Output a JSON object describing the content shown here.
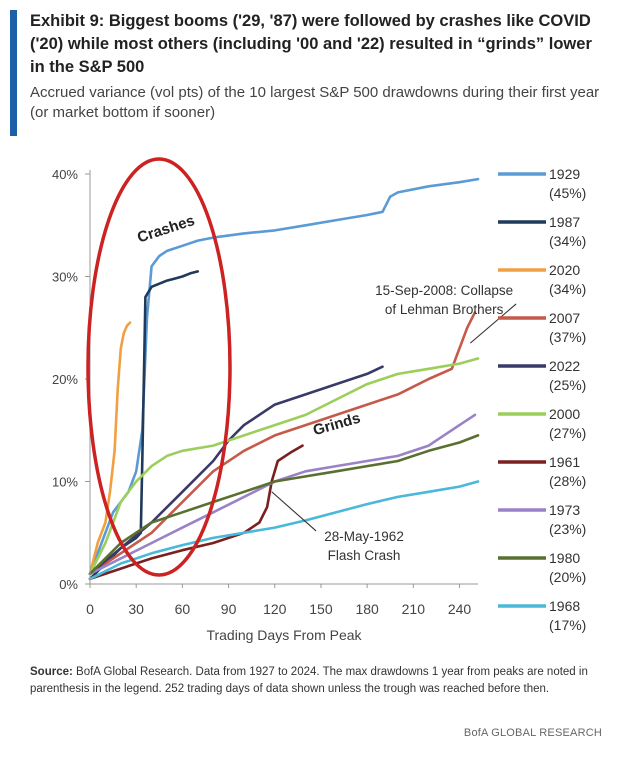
{
  "header": {
    "title": "Exhibit 9: Biggest booms ('29, '87) were followed by crashes like COVID ('20) while most others (including '00 and '22) resulted in “grinds” lower in the S&P 500",
    "subtitle": "Accrued variance (vol pts) of the 10 largest S&P 500 drawdowns during their first year (or market bottom if sooner)"
  },
  "colors": {
    "accent": "#1a5fa8",
    "crash_circle": "#cc2222"
  },
  "chart_data": {
    "type": "line",
    "title": "",
    "xlabel": "Trading Days From Peak",
    "ylabel": "",
    "xlim": [
      0,
      252
    ],
    "ylim": [
      0,
      40
    ],
    "xticks": [
      0,
      30,
      60,
      90,
      120,
      150,
      180,
      210,
      240
    ],
    "yticks": [
      {
        "value": 0,
        "label": "0%"
      },
      {
        "value": 10,
        "label": "10%"
      },
      {
        "value": 20,
        "label": "20%"
      },
      {
        "value": 30,
        "label": "30%"
      },
      {
        "value": 40,
        "label": "40%"
      }
    ],
    "grid": false,
    "legend_position": "right",
    "series": [
      {
        "name": "1929",
        "note": "(45%)",
        "color": "#5b9bd5",
        "x": [
          0,
          5,
          10,
          15,
          20,
          25,
          30,
          34,
          37,
          40,
          45,
          50,
          60,
          70,
          80,
          100,
          120,
          140,
          160,
          180,
          190,
          195,
          200,
          220,
          240,
          252
        ],
        "y": [
          1,
          3,
          5,
          7,
          8,
          9,
          11,
          15,
          26,
          31,
          32,
          32.5,
          33,
          33.5,
          33.8,
          34.2,
          34.5,
          35,
          35.5,
          36,
          36.3,
          37.8,
          38.2,
          38.8,
          39.2,
          39.5
        ]
      },
      {
        "name": "1987",
        "note": "(34%)",
        "color": "#1f3a5a",
        "x": [
          0,
          10,
          20,
          30,
          33,
          34,
          36,
          40,
          45,
          50,
          55,
          60,
          65,
          70
        ],
        "y": [
          0.5,
          2,
          3.5,
          4.5,
          5,
          12,
          28,
          29,
          29.3,
          29.6,
          29.8,
          30,
          30.3,
          30.5
        ]
      },
      {
        "name": "2020",
        "note": "(34%)",
        "color": "#f0a040",
        "x": [
          0,
          5,
          10,
          13,
          16,
          18,
          20,
          22,
          24,
          26
        ],
        "y": [
          1,
          4,
          6,
          9,
          13,
          19,
          23,
          24.5,
          25.2,
          25.5
        ]
      },
      {
        "name": "2007",
        "note": "(37%)",
        "color": "#c55a4a",
        "x": [
          0,
          20,
          40,
          60,
          80,
          100,
          120,
          140,
          160,
          180,
          200,
          220,
          235,
          240,
          245,
          250
        ],
        "y": [
          1,
          3,
          5,
          8,
          11,
          13,
          14.5,
          15.5,
          16.5,
          17.5,
          18.5,
          20,
          21,
          23,
          25,
          26.5
        ]
      },
      {
        "name": "2022",
        "note": "(25%)",
        "color": "#3a3a6a",
        "x": [
          0,
          20,
          40,
          60,
          80,
          90,
          100,
          120,
          140,
          160,
          180,
          190
        ],
        "y": [
          1,
          3.5,
          6,
          9,
          12,
          14,
          15.5,
          17.5,
          18.5,
          19.5,
          20.5,
          21.2
        ]
      },
      {
        "name": "2000",
        "note": "(27%)",
        "color": "#9bcf5a",
        "x": [
          0,
          10,
          20,
          30,
          40,
          50,
          60,
          80,
          100,
          120,
          140,
          160,
          180,
          200,
          220,
          240,
          252
        ],
        "y": [
          1,
          4,
          8,
          10,
          11.5,
          12.5,
          13,
          13.5,
          14.5,
          15.5,
          16.5,
          18,
          19.5,
          20.5,
          21,
          21.5,
          22
        ]
      },
      {
        "name": "1961",
        "note": "(28%)",
        "color": "#7a2020",
        "x": [
          0,
          20,
          40,
          60,
          80,
          100,
          110,
          115,
          118,
          122,
          130,
          138
        ],
        "y": [
          0.5,
          1.5,
          2.5,
          3.3,
          4,
          5,
          6,
          7.5,
          10,
          12,
          12.8,
          13.5
        ]
      },
      {
        "name": "1973",
        "note": "(23%)",
        "color": "#9a82c8",
        "x": [
          0,
          20,
          40,
          60,
          80,
          100,
          120,
          140,
          160,
          180,
          200,
          220,
          240,
          250
        ],
        "y": [
          1,
          2.5,
          4,
          5.5,
          7,
          8.5,
          10,
          11,
          11.5,
          12,
          12.5,
          13.5,
          15.5,
          16.5
        ]
      },
      {
        "name": "1980",
        "note": "(20%)",
        "color": "#5a7030",
        "x": [
          0,
          20,
          40,
          60,
          80,
          100,
          120,
          140,
          160,
          180,
          200,
          220,
          240,
          252
        ],
        "y": [
          1,
          4,
          6,
          7,
          8,
          9,
          10,
          10.5,
          11,
          11.5,
          12,
          13,
          13.8,
          14.5
        ]
      },
      {
        "name": "1968",
        "note": "(17%)",
        "color": "#4ab8d8",
        "x": [
          0,
          20,
          40,
          60,
          80,
          100,
          120,
          140,
          160,
          180,
          200,
          220,
          240,
          252
        ],
        "y": [
          0.5,
          2,
          3,
          3.8,
          4.5,
          5,
          5.5,
          6.2,
          7,
          7.8,
          8.5,
          9,
          9.5,
          10
        ]
      }
    ],
    "annotations": [
      {
        "id": "crashes",
        "text": "Crashes",
        "x": 32,
        "y": 33.3
      },
      {
        "id": "grinds",
        "text": "Grinds",
        "x": 146,
        "y": 14.5
      },
      {
        "id": "lehman",
        "lines": [
          "15-Sep-2008: Collapse",
          "of Lehman Brothers"
        ],
        "x": 230,
        "y": 28.2,
        "to_x": 247,
        "to_y": 23.5
      },
      {
        "id": "flash",
        "lines": [
          "28-May-1962",
          "Flash Crash"
        ],
        "x": 178,
        "y": 4.2,
        "to_x": 118,
        "to_y": 9
      }
    ]
  },
  "footer": {
    "source_label": "Source:",
    "source_text": " BofA Global Research. Data from 1927 to 2024. The max drawdowns 1 year from peaks are noted in parenthesis in the legend. 252 trading days of data shown unless the trough was reached before then.",
    "brand": "BofA GLOBAL RESEARCH"
  }
}
